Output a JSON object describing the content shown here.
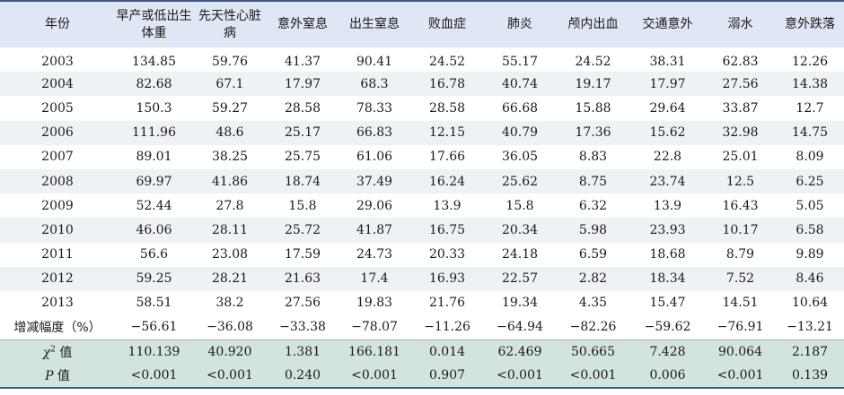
{
  "table": {
    "headers": [
      "年份",
      "早产或低出生体重",
      "先天性心脏病",
      "意外窒息",
      "出生窒息",
      "败血症",
      "肺炎",
      "颅内出血",
      "交通意外",
      "溺水",
      "意外跌落"
    ],
    "rows": [
      {
        "year": "2003",
        "values": [
          "134.85",
          "59.76",
          "41.37",
          "90.41",
          "24.52",
          "55.17",
          "24.52",
          "38.31",
          "62.83",
          "12.26"
        ]
      },
      {
        "year": "2004",
        "values": [
          "82.68",
          "67.1",
          "17.97",
          "68.3",
          "16.78",
          "40.74",
          "19.17",
          "17.97",
          "27.56",
          "14.38"
        ]
      },
      {
        "year": "2005",
        "values": [
          "150.3",
          "59.27",
          "28.58",
          "78.33",
          "28.58",
          "66.68",
          "15.88",
          "29.64",
          "33.87",
          "12.7"
        ]
      },
      {
        "year": "2006",
        "values": [
          "111.96",
          "48.6",
          "25.17",
          "66.83",
          "12.15",
          "40.79",
          "17.36",
          "15.62",
          "32.98",
          "14.75"
        ]
      },
      {
        "year": "2007",
        "values": [
          "89.01",
          "38.25",
          "25.75",
          "61.06",
          "17.66",
          "36.05",
          "8.83",
          "22.8",
          "25.01",
          "8.09"
        ]
      },
      {
        "year": "2008",
        "values": [
          "69.97",
          "41.86",
          "18.74",
          "37.49",
          "16.24",
          "25.62",
          "8.75",
          "23.74",
          "12.5",
          "6.25"
        ]
      },
      {
        "year": "2009",
        "values": [
          "52.44",
          "27.8",
          "15.8",
          "29.06",
          "13.9",
          "15.8",
          "6.32",
          "13.9",
          "16.43",
          "5.05"
        ]
      },
      {
        "year": "2010",
        "values": [
          "46.06",
          "28.11",
          "25.72",
          "41.87",
          "16.75",
          "20.34",
          "5.98",
          "23.93",
          "10.17",
          "6.58"
        ]
      },
      {
        "year": "2011",
        "values": [
          "56.6",
          "23.08",
          "17.59",
          "24.73",
          "20.33",
          "24.18",
          "6.59",
          "18.68",
          "8.79",
          "9.89"
        ]
      },
      {
        "year": "2012",
        "values": [
          "59.25",
          "28.21",
          "21.63",
          "17.4",
          "16.93",
          "22.57",
          "2.82",
          "18.34",
          "7.52",
          "8.46"
        ]
      },
      {
        "year": "2013",
        "values": [
          "58.51",
          "38.2",
          "27.56",
          "19.83",
          "21.76",
          "19.34",
          "4.35",
          "15.47",
          "14.51",
          "10.64"
        ]
      }
    ],
    "change_row": {
      "label": "增减幅度（%）",
      "values": [
        "−56.61",
        "−36.08",
        "−33.38",
        "−78.07",
        "−11.26",
        "−64.94",
        "−82.26",
        "−59.62",
        "−76.91",
        "−13.21"
      ]
    },
    "chi_row": {
      "label_symbol": "χ",
      "label_sup": "2",
      "label_suffix": " 值",
      "values": [
        "110.139",
        "40.920",
        "1.381",
        "166.181",
        "0.014",
        "62.469",
        "50.665",
        "7.428",
        "90.064",
        "2.187"
      ]
    },
    "p_row": {
      "label_symbol": "P",
      "label_suffix": " 值",
      "values": [
        "<0.001",
        "<0.001",
        "0.240",
        "<0.001",
        "0.907",
        "<0.001",
        "<0.001",
        "0.006",
        "<0.001",
        "0.139"
      ]
    }
  },
  "colors": {
    "header_bg": "#dfe7f4",
    "stat_bg": "#d3e4df",
    "stripe": "#eef1f5",
    "rule": "#3a5a8a"
  }
}
